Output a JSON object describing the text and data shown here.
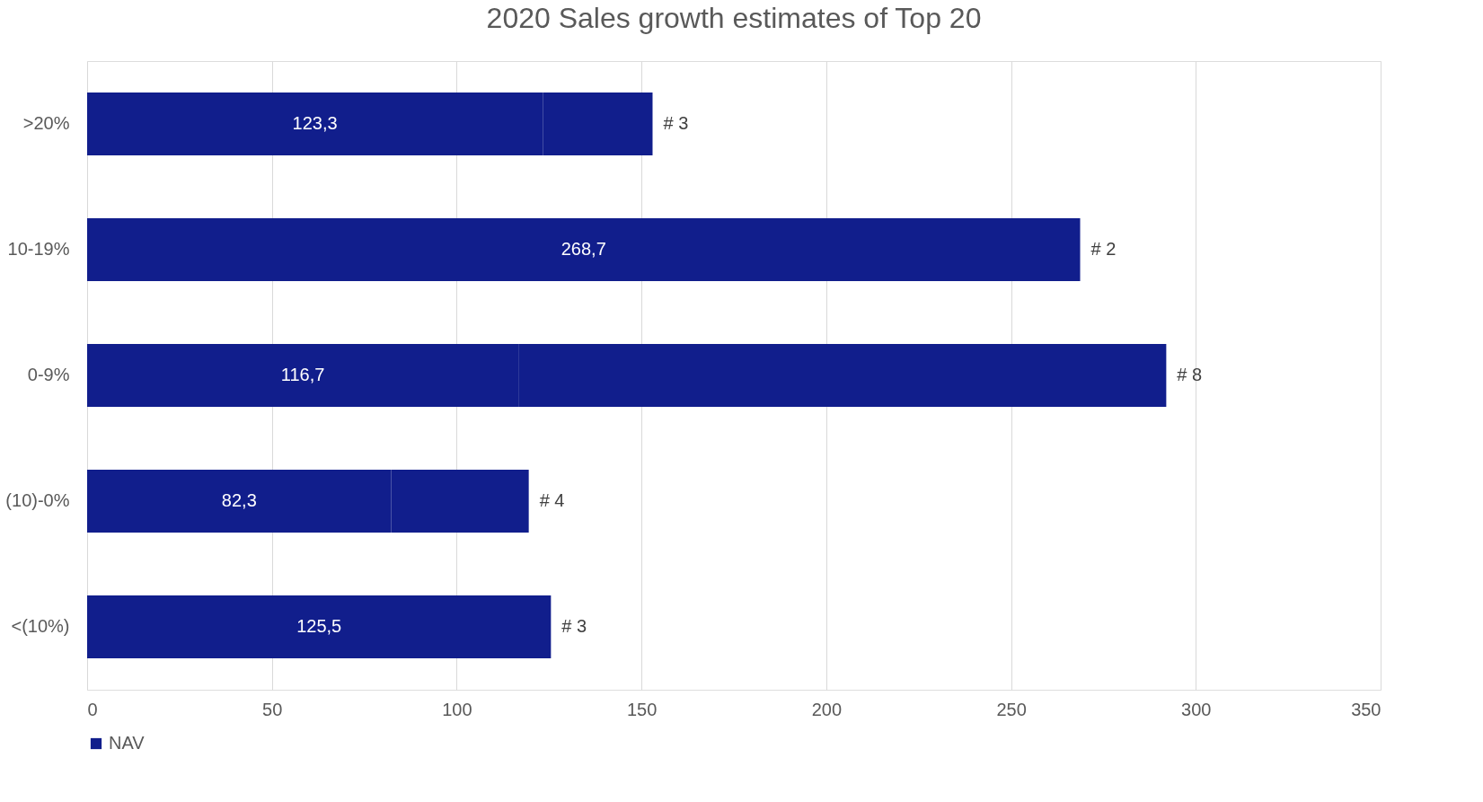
{
  "chart_data": {
    "type": "bar",
    "orientation": "horizontal",
    "stacked": true,
    "title": "2020 Sales growth estimates of Top 20",
    "categories": [
      ">20%",
      "10-19%",
      "0-9%",
      "(10)-0%",
      "<(10%)"
    ],
    "series": [
      {
        "name": "NAV",
        "color": "#111e8c",
        "values": [
          123.3,
          268.7,
          116.7,
          82.3,
          125.5
        ],
        "value_labels": [
          "123,3",
          "268,7",
          "116,7",
          "82,3",
          "125,5"
        ]
      },
      {
        "color": "#111e8c",
        "values": [
          29.7,
          0,
          175.3,
          37.2,
          0
        ]
      }
    ],
    "annotations": [
      {
        "text": "# 3",
        "x": 153,
        "y": ">20%"
      },
      {
        "text": "# 2",
        "x": 268.7,
        "y": "10-19%"
      },
      {
        "text": "# 8",
        "x": 292,
        "y": "0-9%"
      },
      {
        "text": "# 4",
        "x": 119.5,
        "y": "(10)-0%"
      },
      {
        "text": "# 3",
        "x": 125.5,
        "y": "<(10%)"
      }
    ],
    "xlim": [
      0,
      350
    ],
    "xticks": [
      0,
      50,
      100,
      150,
      200,
      250,
      300,
      350
    ],
    "grid": "x",
    "legend": "bottom"
  }
}
